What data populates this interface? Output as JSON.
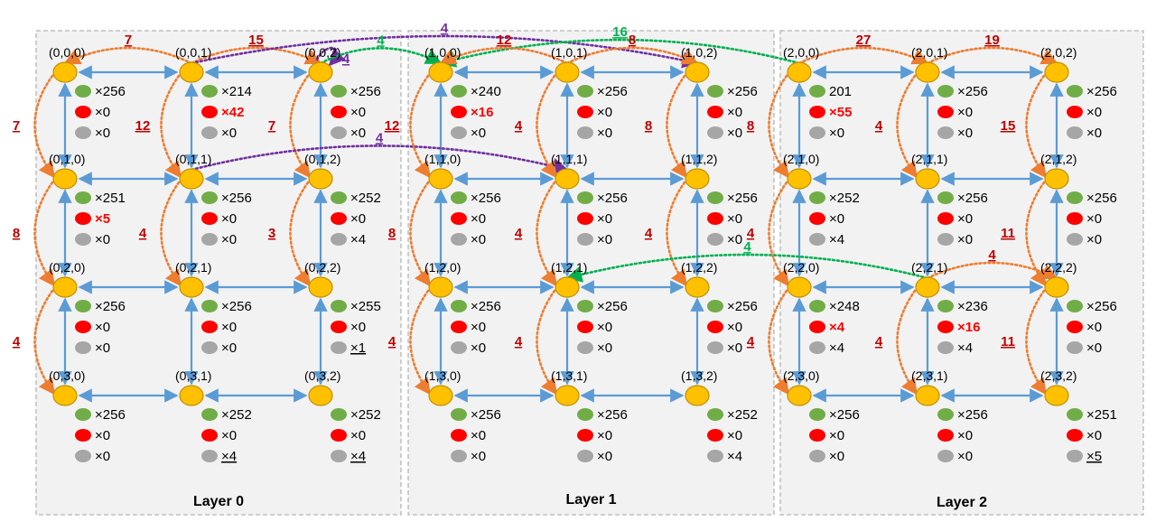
{
  "colors": {
    "panel_fill": "#f2f2f2",
    "panel_border": "#b5b5b5",
    "node_fill": "#ffc000",
    "node_stroke": "#bf9000",
    "mesh_link": "#5b9bd5",
    "orange_arc": "#ed7d31",
    "purple_arc": "#7030a0",
    "green_arc": "#00b050",
    "arc_label": "#c00000",
    "green_dot": "#70ad47",
    "red_dot": "#ff0000",
    "gray_dot": "#a6a6a6",
    "highlight_text": "#ff0000"
  },
  "layers": [
    {
      "title": "Layer 0",
      "nodes": [
        {
          "coord": "(0,0,0)",
          "green": "×256",
          "red": "×0",
          "gray": "×0"
        },
        {
          "coord": "(0,0,1)",
          "green": "×214",
          "red": "×42",
          "gray": "×0",
          "red_highlight": true
        },
        {
          "coord": "(0,0,2)",
          "green": "×256",
          "red": "×0",
          "gray": "×0"
        },
        {
          "coord": "(0,1,0)",
          "green": "×251",
          "red": "×5",
          "gray": "×0",
          "red_highlight": true
        },
        {
          "coord": "(0,1,1)",
          "green": "×256",
          "red": "×0",
          "gray": "×0"
        },
        {
          "coord": "(0,1,2)",
          "green": "×252",
          "red": "×0",
          "gray": "×4"
        },
        {
          "coord": "(0,2,0)",
          "green": "×256",
          "red": "×0",
          "gray": "×0"
        },
        {
          "coord": "(0,2,1)",
          "green": "×256",
          "red": "×0",
          "gray": "×0"
        },
        {
          "coord": "(0,2,2)",
          "green": "×255",
          "red": "×0",
          "gray": "×1",
          "gray_underline": true
        },
        {
          "coord": "(0,3,0)",
          "green": "×256",
          "red": "×0",
          "gray": "×0"
        },
        {
          "coord": "(0,3,1)",
          "green": "×252",
          "red": "×0",
          "gray": "×4",
          "gray_underline": true
        },
        {
          "coord": "(0,3,2)",
          "green": "×252",
          "red": "×0",
          "gray": "×4",
          "gray_underline": true
        }
      ]
    },
    {
      "title": "Layer 1",
      "nodes": [
        {
          "coord": "(1,0,0)",
          "green": "×240",
          "red": "×16",
          "gray": "×0",
          "red_highlight": true
        },
        {
          "coord": "(1,0,1)",
          "green": "×256",
          "red": "×0",
          "gray": "×0"
        },
        {
          "coord": "(1,0,2)",
          "green": "×256",
          "red": "×0",
          "gray": "×0"
        },
        {
          "coord": "(1,1,0)",
          "green": "×256",
          "red": "×0",
          "gray": "×0"
        },
        {
          "coord": "(1,1,1)",
          "green": "×256",
          "red": "×0",
          "gray": "×0"
        },
        {
          "coord": "(1,1,2)",
          "green": "×256",
          "red": "×0",
          "gray": "×0"
        },
        {
          "coord": "(1,2,0)",
          "green": "×256",
          "red": "×0",
          "gray": "×0"
        },
        {
          "coord": "(1,2,1)",
          "green": "×256",
          "red": "×0",
          "gray": "×0"
        },
        {
          "coord": "(1,2,2)",
          "green": "×256",
          "red": "×0",
          "gray": "×0"
        },
        {
          "coord": "(1,3,0)",
          "green": "×256",
          "red": "×0",
          "gray": "×0"
        },
        {
          "coord": "(1,3,1)",
          "green": "×256",
          "red": "×0",
          "gray": "×0"
        },
        {
          "coord": "(1,3,2)",
          "green": "×252",
          "red": "×0",
          "gray": "×4"
        }
      ]
    },
    {
      "title": "Layer 2",
      "nodes": [
        {
          "coord": "(2,0,0)",
          "green": "201",
          "red": "×55",
          "gray": "×0",
          "red_highlight": true
        },
        {
          "coord": "(2,0,1)",
          "green": "×256",
          "red": "×0",
          "gray": "×0"
        },
        {
          "coord": "(2,0,2)",
          "green": "×256",
          "red": "×0",
          "gray": "×0"
        },
        {
          "coord": "(2,1,0)",
          "green": "×252",
          "red": "×0",
          "gray": "×4"
        },
        {
          "coord": "(2,1,1)",
          "green": "×256",
          "red": "×0",
          "gray": "×0"
        },
        {
          "coord": "(2,1,2)",
          "green": "×256",
          "red": "×0",
          "gray": "×0"
        },
        {
          "coord": "(2,2,0)",
          "green": "×248",
          "red": "×4",
          "gray": "×4",
          "red_highlight": true
        },
        {
          "coord": "(2,2,1)",
          "green": "×236",
          "red": "×16",
          "gray": "×4",
          "red_highlight": true
        },
        {
          "coord": "(2,2,2)",
          "green": "×256",
          "red": "×0",
          "gray": "×0"
        },
        {
          "coord": "(2,3,0)",
          "green": "×256",
          "red": "×0",
          "gray": "×0"
        },
        {
          "coord": "(2,3,1)",
          "green": "×256",
          "red": "×0",
          "gray": "×0"
        },
        {
          "coord": "(2,3,2)",
          "green": "×251",
          "red": "×0",
          "gray": "×5",
          "gray_underline": true
        }
      ]
    }
  ],
  "arcs": [
    {
      "from": "(0,0,1)",
      "to": "(0,0,0)",
      "label": "7",
      "color": "orange"
    },
    {
      "from": "(0,0,1)",
      "to": "(0,0,2)",
      "label": "15",
      "color": "orange"
    },
    {
      "from": "(0,0,0)",
      "to": "(0,1,0)",
      "label": "7",
      "color": "orange"
    },
    {
      "from": "(0,0,1)",
      "to": "(0,1,1)",
      "label": "12",
      "color": "orange"
    },
    {
      "from": "(0,0,2)",
      "to": "(0,1,2)",
      "label": "7",
      "color": "orange"
    },
    {
      "from": "(0,1,0)",
      "to": "(0,2,0)",
      "label": "8",
      "color": "orange"
    },
    {
      "from": "(0,1,1)",
      "to": "(0,2,1)",
      "label": "4",
      "color": "orange"
    },
    {
      "from": "(0,1,2)",
      "to": "(0,2,2)",
      "label": "3",
      "color": "orange"
    },
    {
      "from": "(0,2,0)",
      "to": "(0,3,0)",
      "label": "4",
      "color": "orange"
    },
    {
      "from": "(0,0,1)",
      "to": "(1,0,2)",
      "label": "4",
      "color": "purple"
    },
    {
      "from": "(0,0,2)",
      "to": "(0,0,2)",
      "label": "4",
      "color": "purple",
      "self": true
    },
    {
      "from": "(0,1,1)",
      "to": "(1,1,1)",
      "label": "4",
      "color": "purple"
    },
    {
      "from": "(0,0,2)",
      "to": "(1,0,0)",
      "label": "4",
      "color": "green"
    },
    {
      "from": "(2,0,0)",
      "to": "(1,0,0)",
      "label": "16",
      "color": "green"
    },
    {
      "from": "(1,0,1)",
      "to": "(1,0,0)",
      "label": "12",
      "color": "orange"
    },
    {
      "from": "(1,0,1)",
      "to": "(1,0,2)",
      "label": "8",
      "color": "orange"
    },
    {
      "from": "(1,0,0)",
      "to": "(1,1,0)",
      "label": "12",
      "color": "orange"
    },
    {
      "from": "(1,0,1)",
      "to": "(1,1,1)",
      "label": "4",
      "color": "orange"
    },
    {
      "from": "(1,0,2)",
      "to": "(1,1,2)",
      "label": "8",
      "color": "orange"
    },
    {
      "from": "(1,1,0)",
      "to": "(1,2,0)",
      "label": "8",
      "color": "orange"
    },
    {
      "from": "(1,1,1)",
      "to": "(1,2,1)",
      "label": "4",
      "color": "orange"
    },
    {
      "from": "(1,1,2)",
      "to": "(1,2,2)",
      "label": "4",
      "color": "orange"
    },
    {
      "from": "(1,2,0)",
      "to": "(1,3,0)",
      "label": "4",
      "color": "orange"
    },
    {
      "from": "(1,2,1)",
      "to": "(1,3,1)",
      "label": "4",
      "color": "orange"
    },
    {
      "from": "(2,2,1)",
      "to": "(1,2,1)",
      "label": "4",
      "color": "green"
    },
    {
      "from": "(2,0,0)",
      "to": "(2,0,1)",
      "label": "27",
      "color": "orange"
    },
    {
      "from": "(2,0,1)",
      "to": "(2,0,2)",
      "label": "19",
      "color": "orange"
    },
    {
      "from": "(2,0,0)",
      "to": "(2,1,0)",
      "label": "8",
      "color": "orange"
    },
    {
      "from": "(2,0,1)",
      "to": "(2,1,1)",
      "label": "4",
      "color": "orange"
    },
    {
      "from": "(2,0,2)",
      "to": "(2,1,2)",
      "label": "15",
      "color": "orange"
    },
    {
      "from": "(2,1,0)",
      "to": "(2,2,0)",
      "label": "4",
      "color": "orange"
    },
    {
      "from": "(2,1,2)",
      "to": "(2,2,2)",
      "label": "11",
      "color": "orange"
    },
    {
      "from": "(2,2,1)",
      "to": "(2,2,2)",
      "label": "4",
      "color": "orange"
    },
    {
      "from": "(2,2,0)",
      "to": "(2,3,0)",
      "label": "4",
      "color": "orange"
    },
    {
      "from": "(2,2,1)",
      "to": "(2,3,1)",
      "label": "4",
      "color": "orange"
    },
    {
      "from": "(2,2,2)",
      "to": "(2,3,2)",
      "label": "11",
      "color": "orange"
    }
  ]
}
